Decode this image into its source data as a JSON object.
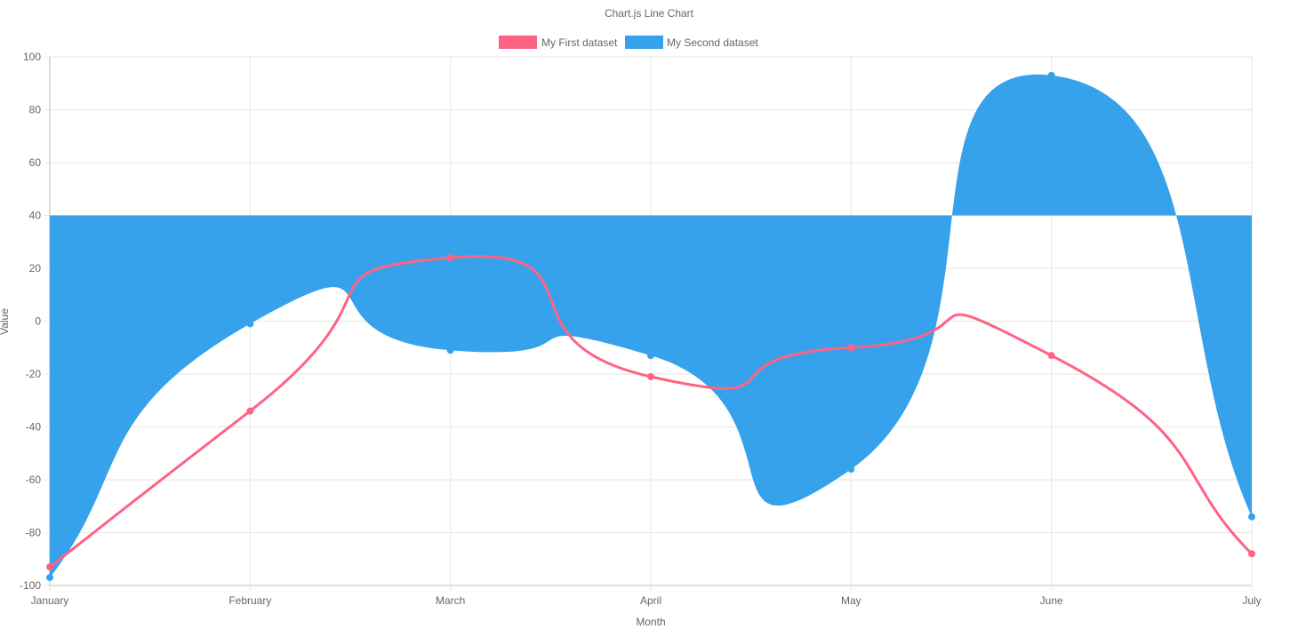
{
  "chart_data": {
    "type": "line",
    "title": "Chart.js Line Chart",
    "xlabel": "Month",
    "ylabel": "Value",
    "categories": [
      "January",
      "February",
      "March",
      "April",
      "May",
      "June",
      "July"
    ],
    "ylim": [
      -100,
      100
    ],
    "y_ticks": [
      "100",
      "80",
      "60",
      "40",
      "20",
      "0",
      "-20",
      "-40",
      "-60",
      "-80",
      "-100"
    ],
    "grid": true,
    "legend_position": "top",
    "series": [
      {
        "name": "My First dataset",
        "values": [
          -93,
          -34,
          24,
          -21,
          -10,
          -13,
          -88
        ],
        "color": "#ff6384",
        "fill": false
      },
      {
        "name": "My Second dataset",
        "values": [
          -97,
          -1,
          -11,
          -13,
          -56,
          93,
          -74
        ],
        "color": "#36a2eb",
        "fill": true,
        "fill_to_value": 40
      }
    ]
  }
}
